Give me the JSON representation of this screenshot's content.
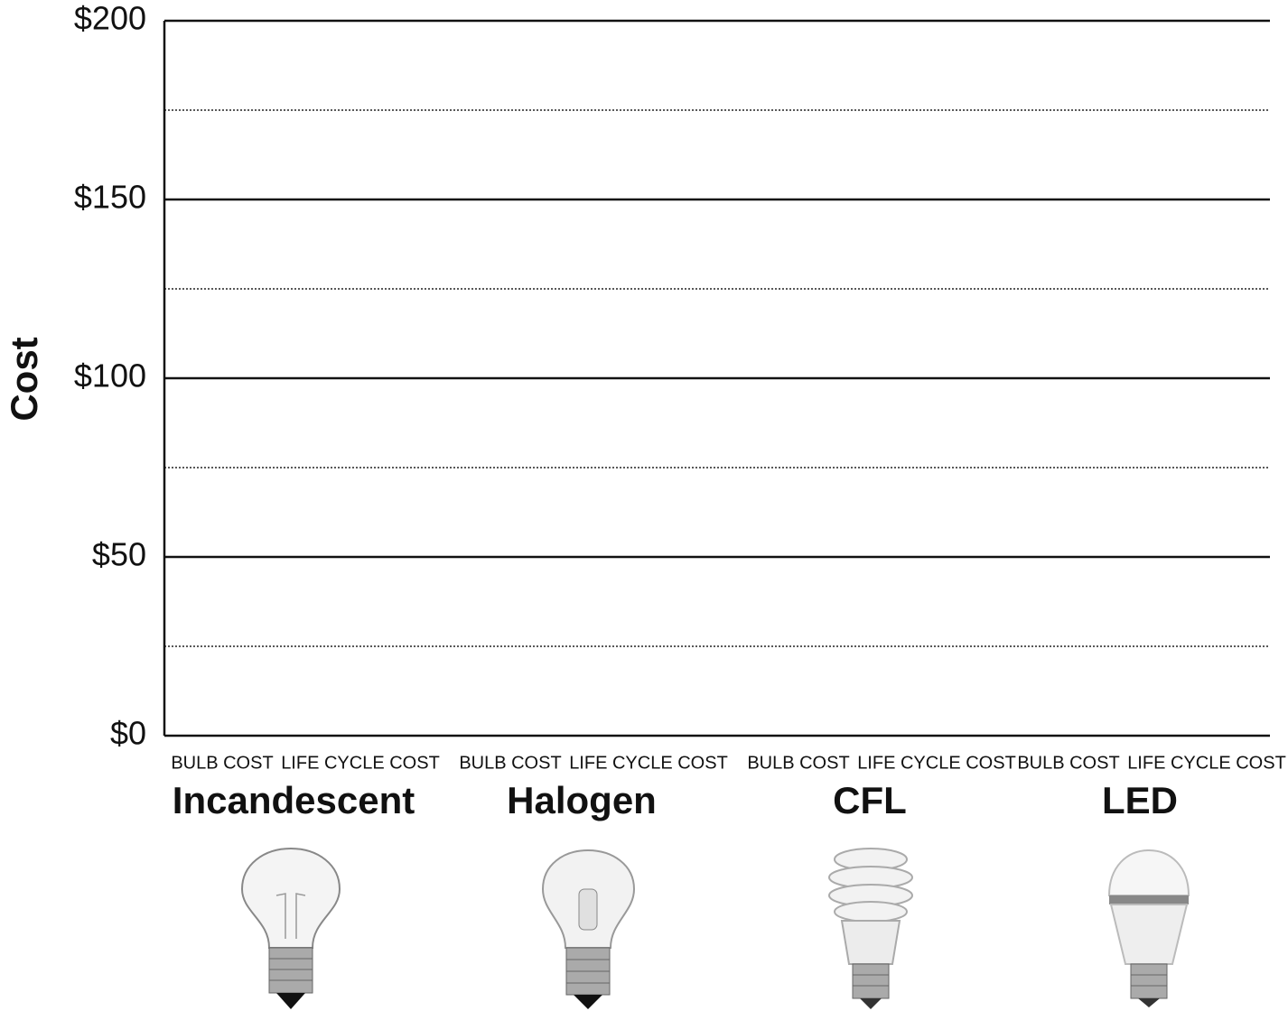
{
  "chart_data": {
    "type": "bar",
    "y_label": "Cost",
    "ylim": [
      0,
      200
    ],
    "yticks": [
      {
        "value": 0,
        "label": "$0"
      },
      {
        "value": 50,
        "label": "$50"
      },
      {
        "value": 100,
        "label": "$100"
      },
      {
        "value": 150,
        "label": "$150"
      },
      {
        "value": 200,
        "label": "$200"
      }
    ],
    "minor_yticks": [
      25,
      75,
      125,
      175
    ],
    "grid": true,
    "groups": [
      {
        "name": "Incandescent",
        "categories": [
          "BULB COST",
          "LIFE CYCLE COST"
        ]
      },
      {
        "name": "Halogen",
        "categories": [
          "BULB COST",
          "LIFE CYCLE COST"
        ]
      },
      {
        "name": "CFL",
        "categories": [
          "BULB COST",
          "LIFE CYCLE COST"
        ]
      },
      {
        "name": "LED",
        "categories": [
          "BULB COST",
          "LIFE CYCLE COST"
        ]
      }
    ]
  }
}
